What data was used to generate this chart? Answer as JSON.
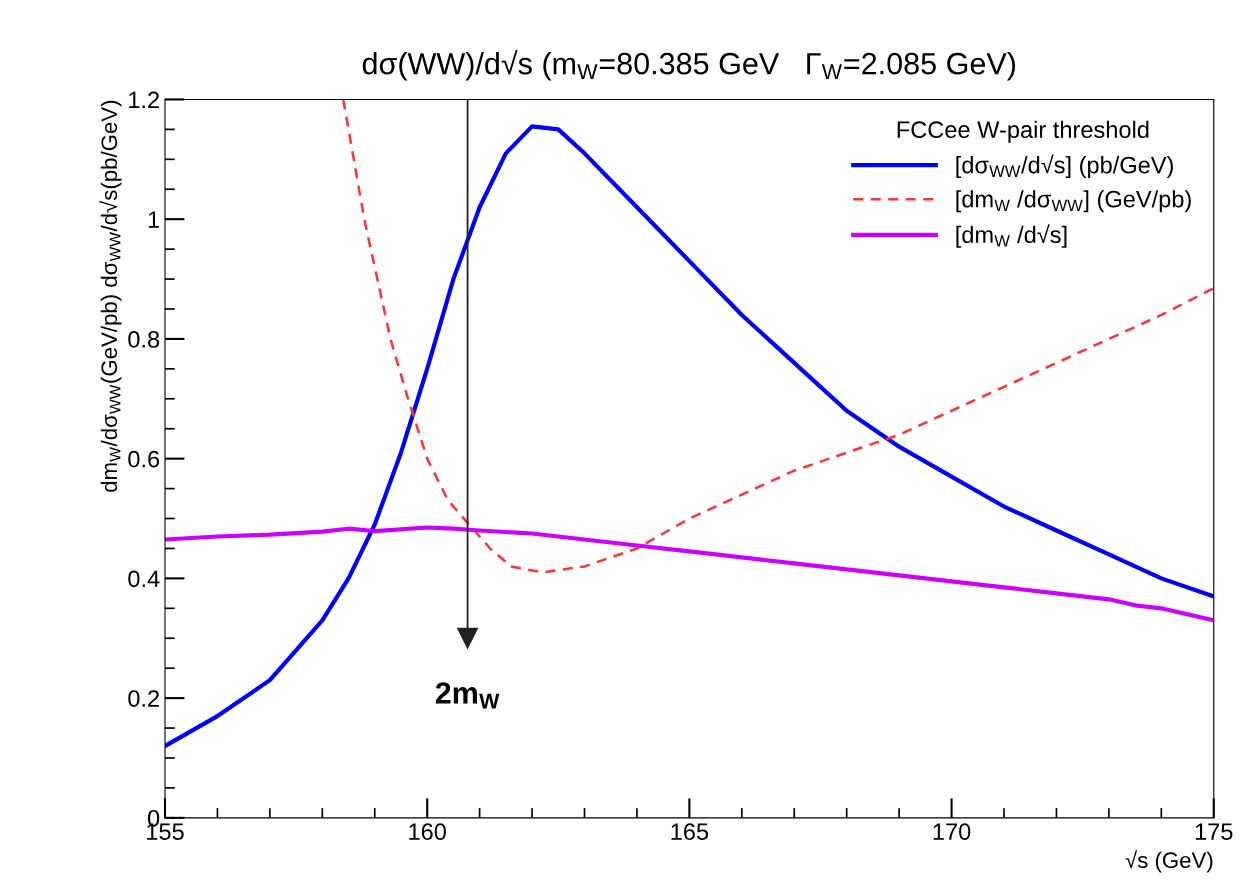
{
  "chart_data": {
    "type": "line",
    "title": "dσ(WW)/d√s (m$_{W}$=80.385 GeV   Γ$_{W}$=2.085 GeV)",
    "xlabel": "√s (GeV)",
    "ylabel": "dm$_{W}$/dσ$_{WW}$(GeV/pb) dσ$_{WW}$/d√s(pb/GeV)",
    "legend_title": "FCCee W-pair threshold",
    "legend": "top right",
    "grid": false,
    "marker": "none",
    "xlim": [
      155,
      175
    ],
    "xticks": [
      155,
      160,
      165,
      170,
      175
    ],
    "ylim": [
      0,
      1.2
    ],
    "yticks": [
      0,
      0.2,
      0.4,
      0.6,
      0.8,
      1,
      1.2
    ],
    "series": [
      {
        "name": "[dσ$_{WW}$/d√s] (pb/GeV)",
        "color": "#0000ff",
        "line_style": "solid",
        "x": [
          155,
          156,
          157,
          158,
          158.5,
          159,
          159.5,
          160,
          160.5,
          161,
          161.5,
          162,
          162.5,
          163,
          164,
          165,
          166,
          167,
          168,
          169,
          170,
          171,
          172,
          173,
          174,
          175
        ],
        "values": [
          0.12,
          0.17,
          0.23,
          0.33,
          0.4,
          0.49,
          0.61,
          0.75,
          0.9,
          1.02,
          1.11,
          1.155,
          1.15,
          1.11,
          1.02,
          0.93,
          0.84,
          0.76,
          0.68,
          0.62,
          0.57,
          0.52,
          0.48,
          0.44,
          0.4,
          0.37
        ]
      },
      {
        "name": "[dm$_{W}$ /dσ$_{WW}$] (GeV/pb)",
        "color": "#ff3333",
        "line_style": "dashed",
        "x": [
          158.4,
          158.8,
          159.3,
          159.6,
          160,
          160.4,
          160.8,
          161.2,
          161.6,
          162.2,
          163,
          164,
          165,
          166,
          167,
          168,
          169,
          170,
          171,
          172,
          173,
          174,
          175
        ],
        "values": [
          1.2,
          1.0,
          0.8,
          0.71,
          0.6,
          0.53,
          0.49,
          0.45,
          0.42,
          0.41,
          0.42,
          0.45,
          0.5,
          0.54,
          0.58,
          0.61,
          0.64,
          0.68,
          0.72,
          0.76,
          0.8,
          0.84,
          0.885
        ]
      },
      {
        "name": "[dm$_{W}$ /d√s]",
        "color": "#cc00ff",
        "line_style": "solid",
        "x": [
          155,
          156,
          157,
          158,
          158.5,
          159,
          160,
          160.5,
          161,
          162,
          163,
          164,
          165,
          166,
          167,
          168,
          169,
          170,
          171,
          172,
          173,
          173.5,
          174,
          175
        ],
        "values": [
          0.465,
          0.47,
          0.473,
          0.478,
          0.483,
          0.479,
          0.485,
          0.483,
          0.48,
          0.475,
          0.465,
          0.455,
          0.445,
          0.435,
          0.425,
          0.415,
          0.405,
          0.395,
          0.385,
          0.375,
          0.365,
          0.355,
          0.35,
          0.33
        ]
      }
    ],
    "ref_lines": [
      {
        "axis": "x",
        "value": 160.77,
        "label": "2m$_{W}$",
        "color": "#222222"
      }
    ]
  }
}
